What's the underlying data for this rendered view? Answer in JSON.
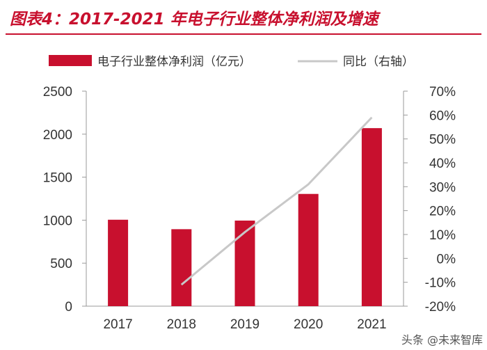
{
  "title": "图表4：2017-2021 年电子行业整体净利润及增速",
  "watermark": "头条 @未来智库",
  "colors": {
    "bar": "#c8102e",
    "line": "#c8c8c8",
    "title": "#c8102e"
  },
  "chart_data": {
    "type": "bar",
    "categories": [
      "2017",
      "2018",
      "2019",
      "2020",
      "2021"
    ],
    "series": [
      {
        "name": "电子行业整体净利润（亿元）",
        "type": "bar",
        "axis": "left",
        "values": [
          1005,
          895,
          995,
          1305,
          2070
        ]
      },
      {
        "name": "同比（右轴）",
        "type": "line",
        "axis": "right",
        "values": [
          null,
          -11,
          11,
          31,
          59
        ]
      }
    ],
    "y_left": {
      "min": 0,
      "max": 2500,
      "ticks": [
        "0",
        "500",
        "1000",
        "1500",
        "2000",
        "2500"
      ],
      "tick_values": [
        0,
        500,
        1000,
        1500,
        2000,
        2500
      ]
    },
    "y_right": {
      "min": -20,
      "max": 70,
      "ticks": [
        "-20%",
        "-10%",
        "0%",
        "10%",
        "20%",
        "30%",
        "40%",
        "50%",
        "60%",
        "70%"
      ],
      "tick_values": [
        -20,
        -10,
        0,
        10,
        20,
        30,
        40,
        50,
        60,
        70
      ]
    },
    "legend_position": "top"
  }
}
